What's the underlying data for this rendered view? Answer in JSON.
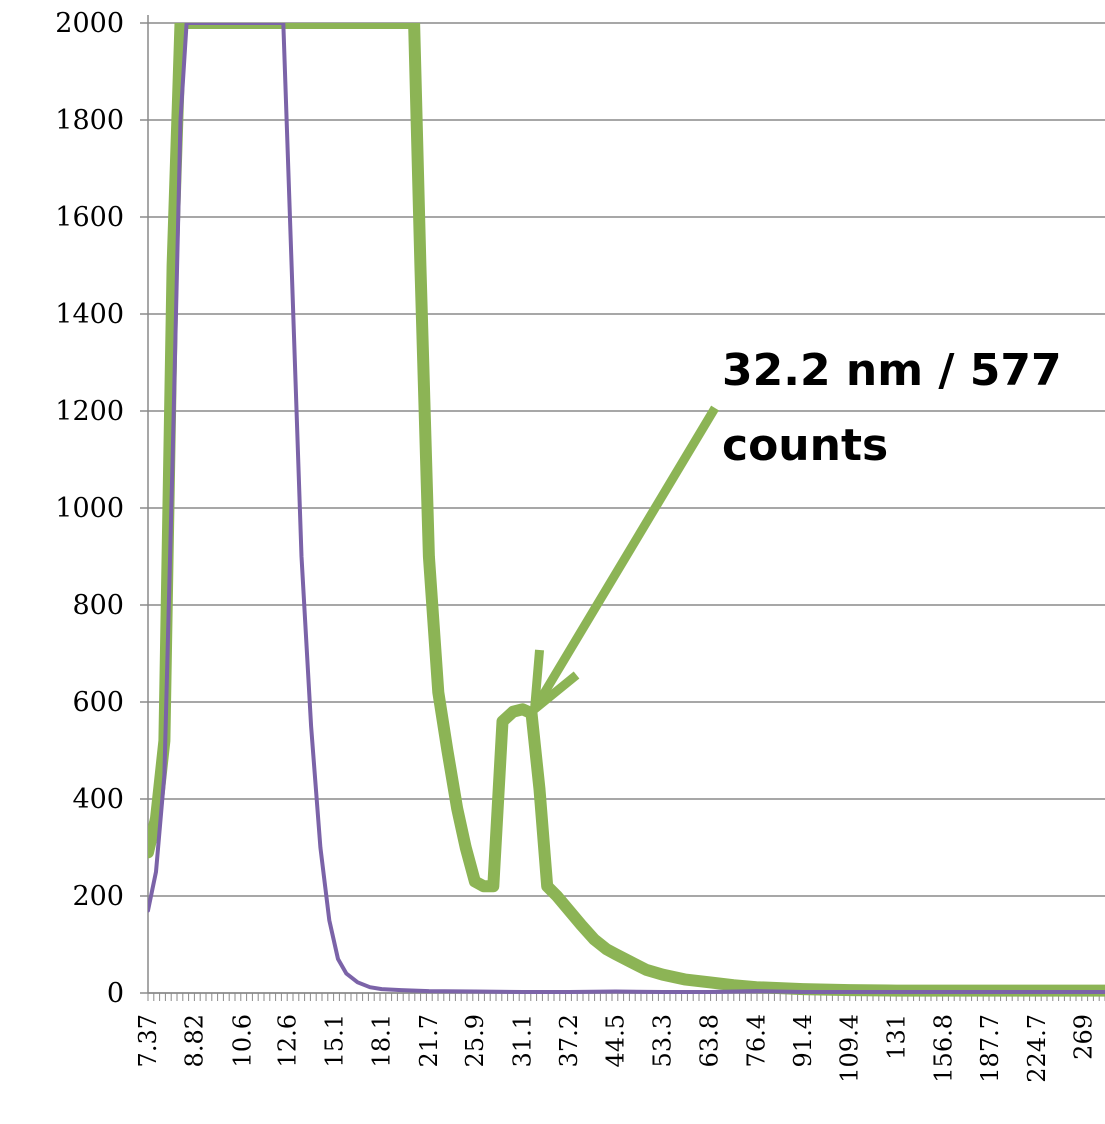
{
  "chart_data": {
    "type": "line",
    "x_ticks": [
      "7.37",
      "8.82",
      "10.6",
      "12.6",
      "15.1",
      "18.1",
      "21.7",
      "25.9",
      "31.1",
      "37.2",
      "44.5",
      "53.3",
      "63.8",
      "76.4",
      "91.4",
      "109.4",
      "131",
      "156.8",
      "187.7",
      "224.7",
      "269"
    ],
    "y_ticks": [
      "2000",
      "1800",
      "1600",
      "1400",
      "1200",
      "1000",
      "800",
      "600",
      "400",
      "200",
      "0"
    ],
    "ylim": [
      0,
      2000
    ],
    "grid": "horizontal",
    "series": [
      {
        "color": "#8cb455",
        "points": [
          [
            7.37,
            290
          ],
          [
            7.6,
            360
          ],
          [
            7.85,
            520
          ],
          [
            8.1,
            1500
          ],
          [
            8.35,
            2000
          ],
          [
            20.5,
            2000
          ],
          [
            21.0,
            1500
          ],
          [
            21.7,
            900
          ],
          [
            22.5,
            620
          ],
          [
            23.3,
            500
          ],
          [
            24.2,
            380
          ],
          [
            25.0,
            300
          ],
          [
            25.9,
            230
          ],
          [
            26.8,
            220
          ],
          [
            27.8,
            220
          ],
          [
            28.8,
            560
          ],
          [
            30.0,
            580
          ],
          [
            31.1,
            585
          ],
          [
            32.2,
            577
          ],
          [
            33.2,
            420
          ],
          [
            34.2,
            220
          ],
          [
            35.5,
            200
          ],
          [
            37.2,
            170
          ],
          [
            39.0,
            140
          ],
          [
            41.0,
            110
          ],
          [
            43.0,
            90
          ],
          [
            44.5,
            80
          ],
          [
            47.0,
            65
          ],
          [
            50.0,
            48
          ],
          [
            53.3,
            38
          ],
          [
            58.0,
            28
          ],
          [
            63.8,
            22
          ],
          [
            70.0,
            16
          ],
          [
            76.4,
            12
          ],
          [
            91.4,
            8
          ],
          [
            109.4,
            6
          ],
          [
            131,
            5
          ],
          [
            156.8,
            5
          ],
          [
            187.7,
            5
          ],
          [
            224.7,
            5
          ],
          [
            269,
            5
          ],
          [
            292,
            5
          ]
        ]
      },
      {
        "color": "#7b63a8",
        "points": [
          [
            7.37,
            170
          ],
          [
            7.6,
            250
          ],
          [
            7.85,
            450
          ],
          [
            8.1,
            1100
          ],
          [
            8.35,
            1800
          ],
          [
            8.55,
            2000
          ],
          [
            12.4,
            2000
          ],
          [
            12.8,
            1500
          ],
          [
            13.3,
            900
          ],
          [
            13.8,
            550
          ],
          [
            14.3,
            300
          ],
          [
            14.8,
            150
          ],
          [
            15.3,
            70
          ],
          [
            15.8,
            40
          ],
          [
            16.5,
            22
          ],
          [
            17.3,
            12
          ],
          [
            18.1,
            8
          ],
          [
            19.5,
            6
          ],
          [
            21.7,
            4
          ],
          [
            25.9,
            3
          ],
          [
            31.1,
            2
          ],
          [
            37.2,
            2
          ],
          [
            44.5,
            3
          ],
          [
            53.3,
            2
          ],
          [
            63.8,
            2
          ],
          [
            76.4,
            4
          ],
          [
            91.4,
            2
          ],
          [
            109.4,
            2
          ],
          [
            131,
            2
          ],
          [
            156.8,
            2
          ],
          [
            187.7,
            2
          ],
          [
            224.7,
            2
          ],
          [
            269,
            2
          ],
          [
            292,
            2
          ]
        ]
      }
    ],
    "annotation": {
      "line1": "32.2 nm / 577",
      "line2": "counts",
      "x": 32.2,
      "y": 577,
      "color": "#8cb455"
    }
  }
}
